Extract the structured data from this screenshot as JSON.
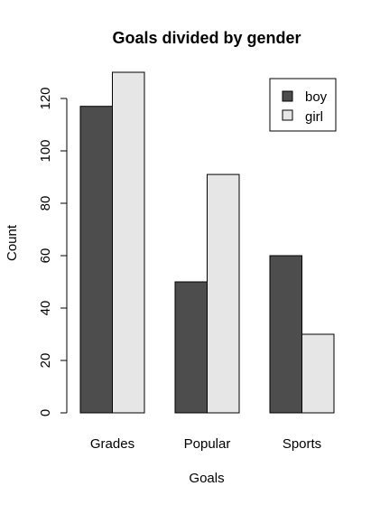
{
  "chart_data": {
    "type": "bar",
    "title": "Goals divided by gender",
    "xlabel": "Goals",
    "ylabel": "Count",
    "categories": [
      "Grades",
      "Popular",
      "Sports"
    ],
    "series": [
      {
        "name": "boy",
        "values": [
          117,
          50,
          60
        ],
        "color": "#4d4d4d"
      },
      {
        "name": "girl",
        "values": [
          130,
          91,
          30
        ],
        "color": "#e6e6e6"
      }
    ],
    "yticks": [
      0,
      20,
      40,
      60,
      80,
      100,
      120
    ],
    "ylim": [
      0,
      130
    ],
    "grid": false,
    "legend_position": "top-right"
  }
}
